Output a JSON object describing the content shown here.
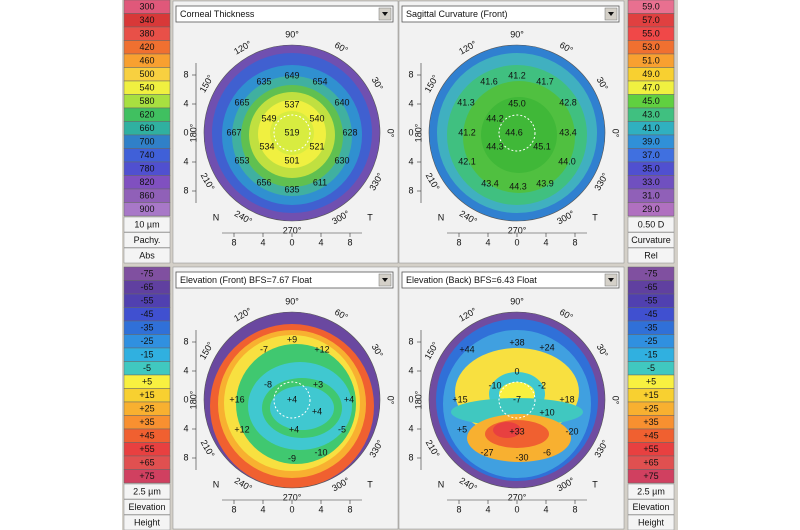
{
  "panels": [
    {
      "title": "Corneal Thickness",
      "map_labels": [
        "649",
        "635",
        "654",
        "665",
        "640",
        "537",
        "549",
        "540",
        "667",
        "519",
        "628",
        "534",
        "521",
        "653",
        "501",
        "630",
        "656",
        "635",
        "611"
      ]
    },
    {
      "title": "Sagittal Curvature (Front)",
      "map_labels": [
        "41.2",
        "41.6",
        "41.7",
        "41.3",
        "42.8",
        "45.0",
        "44.2",
        "41.2",
        "44.6",
        "43.4",
        "44.3",
        "45.1",
        "42.1",
        "44.0",
        "43.4",
        "44.3",
        "43.9"
      ]
    },
    {
      "title": "Elevation (Front)  BFS=7.67 Float",
      "map_labels": [
        "+9",
        "-7",
        "+12",
        "-8",
        "+3",
        "+16",
        "+4",
        "+4",
        "+4",
        "+12",
        "+4",
        "-5",
        "-9",
        "-10"
      ]
    },
    {
      "title": "Elevation (Back)  BFS=6.43 Float",
      "map_labels": [
        "+38",
        "+44",
        "+24",
        "0",
        "-10",
        "-2",
        "+15",
        "-7",
        "+18",
        "+10",
        "+5",
        "+33",
        "-20",
        "-27",
        "-30",
        "-6"
      ]
    }
  ],
  "degree_labels": [
    "0°",
    "30°",
    "60°",
    "90°",
    "120°",
    "150°",
    "180°",
    "210°",
    "240°",
    "270°",
    "300°",
    "330°"
  ],
  "axis_labels": [
    "8",
    "4",
    "0",
    "4",
    "8"
  ],
  "nasal": "N",
  "temporal": "T",
  "scales": [
    {
      "values": [
        "300",
        "340",
        "380",
        "420",
        "460",
        "500",
        "540",
        "580",
        "620",
        "660",
        "700",
        "740",
        "780",
        "820",
        "860",
        "900"
      ],
      "colors": [
        "#e0587a",
        "#d83838",
        "#e85048",
        "#f07030",
        "#f8a030",
        "#f8d040",
        "#f0f040",
        "#a8e040",
        "#40c060",
        "#30b0a0",
        "#3080c8",
        "#4060d8",
        "#5050d0",
        "#8050c0",
        "#9060b8",
        "#a878c8"
      ],
      "footer": [
        "10 µm",
        "Pachy.",
        "Abs"
      ]
    },
    {
      "values": [
        "59.0",
        "57.0",
        "55.0",
        "53.0",
        "51.0",
        "49.0",
        "47.0",
        "45.0",
        "43.0",
        "41.0",
        "39.0",
        "37.0",
        "35.0",
        "33.0",
        "31.0",
        "29.0"
      ],
      "colors": [
        "#e87090",
        "#e04040",
        "#f04848",
        "#f07030",
        "#f8a030",
        "#f8d030",
        "#f0f040",
        "#60d040",
        "#40c080",
        "#30b0c0",
        "#3090d8",
        "#4070e0",
        "#5050d0",
        "#7050c0",
        "#9060b8",
        "#b070c0"
      ],
      "footer": [
        "0.50 D",
        "Curvature",
        "Rel"
      ]
    },
    {
      "values": [
        "-75",
        "-65",
        "-55",
        "-45",
        "-35",
        "-25",
        "-15",
        "-5",
        "+5",
        "+15",
        "+25",
        "+35",
        "+45",
        "+55",
        "+65",
        "+75"
      ],
      "colors": [
        "#8050a0",
        "#6040a0",
        "#5040b0",
        "#4050d0",
        "#3070d8",
        "#3090e0",
        "#30b0e0",
        "#40c8c0",
        "#f8f040",
        "#f8d030",
        "#f8b030",
        "#f89030",
        "#f06030",
        "#e84040",
        "#e05050",
        "#d04060"
      ],
      "footer": [
        "2.5 µm",
        "Elevation",
        "Height"
      ]
    },
    {
      "values": [
        "-75",
        "-65",
        "-55",
        "-45",
        "-35",
        "-25",
        "-15",
        "-5",
        "+5",
        "+15",
        "+25",
        "+35",
        "+45",
        "+55",
        "+65",
        "+75"
      ],
      "colors": [
        "#8050a0",
        "#6040a0",
        "#5040b0",
        "#4050d0",
        "#3070d8",
        "#3090e0",
        "#30b0e0",
        "#40c8c0",
        "#f8f040",
        "#f8d030",
        "#f8b030",
        "#f89030",
        "#f06030",
        "#e84040",
        "#e05050",
        "#d04060"
      ],
      "footer": [
        "2.5 µm",
        "Elevation",
        "Height"
      ]
    }
  ]
}
